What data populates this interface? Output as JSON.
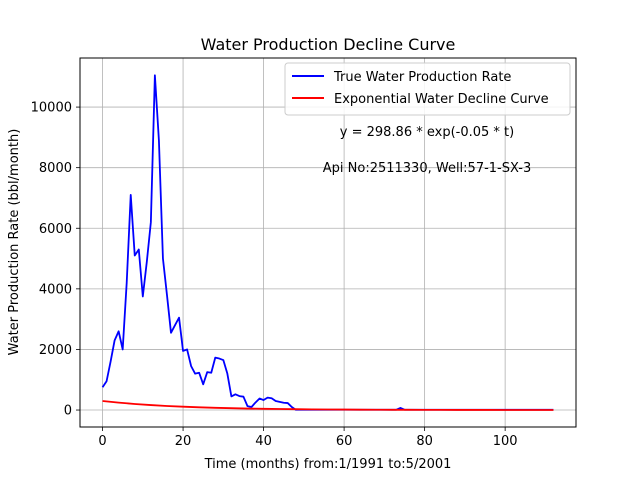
{
  "chart_data": {
    "type": "line",
    "title": "Water Production Decline Curve",
    "xlabel": "Time (months) from:1/1991 to:5/2001",
    "ylabel": "Water Production Rate (bbl/month)",
    "xlim": [
      -5.6,
      117.6
    ],
    "ylim": [
      -560,
      11620
    ],
    "x_ticks": [
      0,
      20,
      40,
      60,
      80,
      100
    ],
    "x_tick_labels": [
      "0",
      "20",
      "40",
      "60",
      "80",
      "100"
    ],
    "y_ticks": [
      0,
      2000,
      4000,
      6000,
      8000,
      10000
    ],
    "y_tick_labels": [
      "0",
      "2000",
      "4000",
      "6000",
      "8000",
      "10000"
    ],
    "grid": true,
    "legend_position": "top-right",
    "annotations": [
      {
        "text": "y = 298.86 * exp(-0.05 * t)"
      },
      {
        "text": "Api No:2511330, Well:57-1-SX-3"
      }
    ],
    "series": [
      {
        "name": "True Water Production Rate",
        "color": "#0000ff",
        "x": [
          0,
          1,
          2,
          3,
          4,
          5,
          6,
          7,
          8,
          9,
          10,
          11,
          12,
          13,
          14,
          15,
          16,
          17,
          18,
          19,
          20,
          21,
          22,
          23,
          24,
          25,
          26,
          27,
          28,
          29,
          30,
          31,
          32,
          33,
          34,
          35,
          36,
          37,
          38,
          39,
          40,
          41,
          42,
          43,
          44,
          45,
          46,
          47,
          48,
          49,
          50,
          51,
          52,
          53,
          54,
          55,
          56,
          57,
          58,
          59,
          60,
          61,
          62,
          63,
          64,
          65,
          66,
          67,
          68,
          69,
          70,
          71,
          72,
          73,
          74,
          75,
          76,
          77,
          78,
          79,
          80,
          81,
          82,
          83,
          84,
          85,
          86,
          87,
          88,
          89,
          90,
          91,
          92,
          93,
          94,
          95,
          96,
          97,
          98,
          99,
          100,
          101,
          102,
          103,
          104,
          105,
          106,
          107,
          108,
          109,
          110,
          111,
          112
        ],
        "y": [
          750,
          950,
          1600,
          2300,
          2600,
          2000,
          4200,
          7100,
          5100,
          5300,
          3750,
          4900,
          6200,
          11050,
          8900,
          5000,
          3800,
          2550,
          2800,
          3050,
          1950,
          2000,
          1450,
          1200,
          1230,
          850,
          1250,
          1230,
          1730,
          1700,
          1650,
          1200,
          450,
          520,
          460,
          440,
          130,
          100,
          250,
          380,
          330,
          410,
          390,
          300,
          270,
          240,
          230,
          100,
          10,
          10,
          10,
          10,
          10,
          10,
          10,
          10,
          10,
          10,
          10,
          10,
          10,
          10,
          10,
          10,
          10,
          10,
          10,
          10,
          10,
          10,
          10,
          10,
          10,
          10,
          70,
          10,
          10,
          10,
          10,
          10,
          10,
          10,
          10,
          10,
          10,
          10,
          10,
          10,
          10,
          10,
          10,
          10,
          10,
          10,
          10,
          10,
          10,
          10,
          10,
          10,
          10,
          10,
          10,
          10,
          10,
          10,
          10,
          10,
          10,
          10,
          10,
          10,
          10
        ]
      },
      {
        "name": "Exponential Water Decline Curve",
        "color": "#ff0000",
        "function": "298.86*exp(-0.05*t)",
        "x": [
          0,
          4,
          8,
          12,
          16,
          20,
          24,
          28,
          32,
          36,
          40,
          44,
          48,
          52,
          56,
          60,
          64,
          68,
          72,
          76,
          80,
          84,
          88,
          92,
          96,
          100,
          104,
          108,
          112
        ],
        "y": [
          298.86,
          244.69,
          200.33,
          164.02,
          134.29,
          109.94,
          90.02,
          73.7,
          60.34,
          49.4,
          40.45,
          33.12,
          27.11,
          22.2,
          18.17,
          14.88,
          12.18,
          9.97,
          8.17,
          6.69,
          5.47,
          4.48,
          3.67,
          3.0,
          2.46,
          2.01,
          1.65,
          1.35,
          1.11
        ]
      }
    ]
  }
}
